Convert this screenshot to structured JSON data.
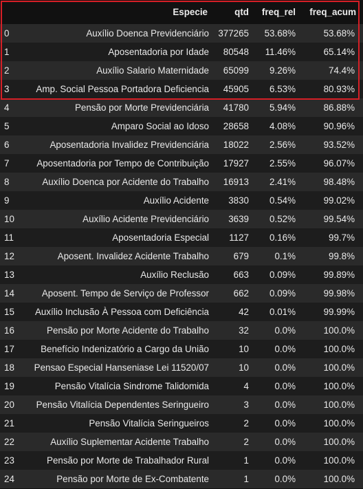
{
  "columns": {
    "index": "",
    "especie": "Especie",
    "qtd": "qtd",
    "freq_rel": "freq_rel",
    "freq_acum": "freq_acum"
  },
  "rows": [
    {
      "idx": "0",
      "especie": "Auxílio Doenca Previdenciário",
      "qtd": "377265",
      "freq_rel": "53.68%",
      "freq_acum": "53.68%"
    },
    {
      "idx": "1",
      "especie": "Aposentadoria por Idade",
      "qtd": "80548",
      "freq_rel": "11.46%",
      "freq_acum": "65.14%"
    },
    {
      "idx": "2",
      "especie": "Auxílio Salario Maternidade",
      "qtd": "65099",
      "freq_rel": "9.26%",
      "freq_acum": "74.4%"
    },
    {
      "idx": "3",
      "especie": "Amp. Social Pessoa Portadora Deficiencia",
      "qtd": "45905",
      "freq_rel": "6.53%",
      "freq_acum": "80.93%"
    },
    {
      "idx": "4",
      "especie": "Pensão por Morte Previdenciária",
      "qtd": "41780",
      "freq_rel": "5.94%",
      "freq_acum": "86.88%"
    },
    {
      "idx": "5",
      "especie": "Amparo Social ao Idoso",
      "qtd": "28658",
      "freq_rel": "4.08%",
      "freq_acum": "90.96%"
    },
    {
      "idx": "6",
      "especie": "Aposentadoria Invalidez Previdenciária",
      "qtd": "18022",
      "freq_rel": "2.56%",
      "freq_acum": "93.52%"
    },
    {
      "idx": "7",
      "especie": "Aposentadoria por Tempo de Contribuição",
      "qtd": "17927",
      "freq_rel": "2.55%",
      "freq_acum": "96.07%"
    },
    {
      "idx": "8",
      "especie": "Auxílio Doenca por Acidente do Trabalho",
      "qtd": "16913",
      "freq_rel": "2.41%",
      "freq_acum": "98.48%"
    },
    {
      "idx": "9",
      "especie": "Auxílio Acidente",
      "qtd": "3830",
      "freq_rel": "0.54%",
      "freq_acum": "99.02%"
    },
    {
      "idx": "10",
      "especie": "Auxílio Acidente Previdenciário",
      "qtd": "3639",
      "freq_rel": "0.52%",
      "freq_acum": "99.54%"
    },
    {
      "idx": "11",
      "especie": "Aposentadoria Especial",
      "qtd": "1127",
      "freq_rel": "0.16%",
      "freq_acum": "99.7%"
    },
    {
      "idx": "12",
      "especie": "Aposent. Invalidez Acidente Trabalho",
      "qtd": "679",
      "freq_rel": "0.1%",
      "freq_acum": "99.8%"
    },
    {
      "idx": "13",
      "especie": "Auxílio Reclusão",
      "qtd": "663",
      "freq_rel": "0.09%",
      "freq_acum": "99.89%"
    },
    {
      "idx": "14",
      "especie": "Aposent. Tempo de Serviço de Professor",
      "qtd": "662",
      "freq_rel": "0.09%",
      "freq_acum": "99.98%"
    },
    {
      "idx": "15",
      "especie": "Auxílio Inclusão À Pessoa com Deficiência",
      "qtd": "42",
      "freq_rel": "0.01%",
      "freq_acum": "99.99%"
    },
    {
      "idx": "16",
      "especie": "Pensão por Morte Acidente do Trabalho",
      "qtd": "32",
      "freq_rel": "0.0%",
      "freq_acum": "100.0%"
    },
    {
      "idx": "17",
      "especie": "Benefício Indenizatório a Cargo da União",
      "qtd": "10",
      "freq_rel": "0.0%",
      "freq_acum": "100.0%"
    },
    {
      "idx": "18",
      "especie": "Pensao Especial Hanseniase Lei 11520/07",
      "qtd": "10",
      "freq_rel": "0.0%",
      "freq_acum": "100.0%"
    },
    {
      "idx": "19",
      "especie": "Pensão Vitalícia Sindrome Talidomida",
      "qtd": "4",
      "freq_rel": "0.0%",
      "freq_acum": "100.0%"
    },
    {
      "idx": "20",
      "especie": "Pensão Vitalícia Dependentes Seringueiro",
      "qtd": "3",
      "freq_rel": "0.0%",
      "freq_acum": "100.0%"
    },
    {
      "idx": "21",
      "especie": "Pensão Vitalícia Seringueiros",
      "qtd": "2",
      "freq_rel": "0.0%",
      "freq_acum": "100.0%"
    },
    {
      "idx": "22",
      "especie": "Auxílio Suplementar Acidente Trabalho",
      "qtd": "2",
      "freq_rel": "0.0%",
      "freq_acum": "100.0%"
    },
    {
      "idx": "23",
      "especie": "Pensão por Morte de Trabalhador Rural",
      "qtd": "1",
      "freq_rel": "0.0%",
      "freq_acum": "100.0%"
    },
    {
      "idx": "24",
      "especie": "Pensão por Morte de Ex-Combatente",
      "qtd": "1",
      "freq_rel": "0.0%",
      "freq_acum": "100.0%"
    }
  ],
  "highlight": {
    "color": "#d61f26",
    "rows": 4
  },
  "colors": {
    "background": "#111111",
    "row_odd": "#2a2a2a",
    "row_even": "#1d1d1d",
    "text": "#e9e9e9"
  }
}
